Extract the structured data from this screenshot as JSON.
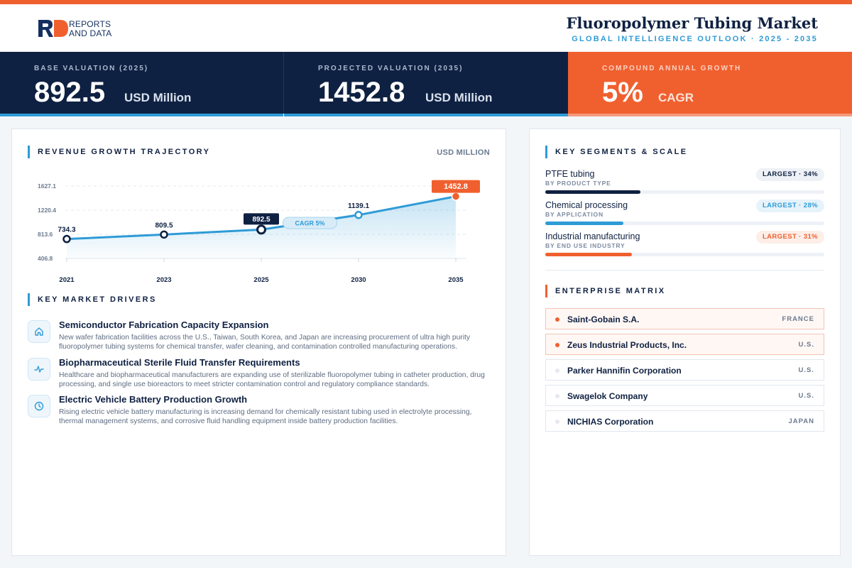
{
  "brand": {
    "logo_line1": "REPORTS",
    "logo_line2": "AND DATA",
    "logo_mark": "RD"
  },
  "header": {
    "title": "Fluoropolymer Tubing Market",
    "subtitle": "GLOBAL INTELLIGENCE OUTLOOK  ·  2025 - 2035"
  },
  "kpis": [
    {
      "label": "BASE VALUATION (2025)",
      "value": "892.5",
      "unit": "USD Million"
    },
    {
      "label": "PROJECTED VALUATION (2035)",
      "value": "1452.8",
      "unit": "USD Million"
    },
    {
      "label": "COMPOUND ANNUAL GROWTH",
      "value": "5%",
      "unit": "CAGR"
    }
  ],
  "revenue": {
    "title": "REVENUE GROWTH TRAJECTORY",
    "unit_label": "USD MILLION",
    "cagr_pill": "CAGR 5%"
  },
  "chart_data": {
    "type": "area",
    "x": [
      "2021",
      "2023",
      "2025",
      "2030",
      "2035"
    ],
    "series": [
      {
        "values": [
          734.3,
          809.5,
          892.5,
          1139.1,
          1452.8
        ]
      }
    ],
    "data_labels": [
      "734.3",
      "809.5",
      "892.5",
      "1139.1",
      "1452.8"
    ],
    "y_ticks": [
      "406.8",
      "813.6",
      "1220.4",
      "1627.1"
    ],
    "ylim": [
      406.8,
      1627.1
    ],
    "grid": true,
    "annotation": "CAGR 5%"
  },
  "drivers": {
    "title": "KEY MARKET DRIVERS",
    "items": [
      {
        "icon": "home-icon",
        "title": "Semiconductor Fabrication Capacity Expansion",
        "desc": "New wafer fabrication facilities across the U.S., Taiwan, South Korea, and Japan are increasing procurement of ultra high purity fluoropolymer tubing systems for chemical transfer, wafer cleaning, and contamination controlled manufacturing operations."
      },
      {
        "icon": "pulse-icon",
        "title": "Biopharmaceutical Sterile Fluid Transfer Requirements",
        "desc": "Healthcare and biopharmaceutical manufacturers are expanding use of sterilizable fluoropolymer tubing in catheter production, drug processing, and single use bioreactors to meet stricter contamination control and regulatory compliance standards."
      },
      {
        "icon": "clock-icon",
        "title": "Electric Vehicle Battery Production Growth",
        "desc": "Rising electric vehicle battery manufacturing is increasing demand for chemically resistant tubing used in electrolyte processing, thermal management systems, and corrosive fluid handling equipment inside battery production facilities."
      }
    ]
  },
  "segments": {
    "title": "KEY SEGMENTS & SCALE",
    "items": [
      {
        "name": "PTFE tubing",
        "category": "BY PRODUCT TYPE",
        "badge": "LARGEST · 34%",
        "share": 0.34,
        "color": "#0f2142",
        "badge_bg": "#eef1f6",
        "badge_fg": "#0f2142"
      },
      {
        "name": "Chemical processing",
        "category": "BY APPLICATION",
        "badge": "LARGEST · 28%",
        "share": 0.28,
        "color": "#2e9bd6",
        "badge_bg": "#e6f3fb",
        "badge_fg": "#2e9bd6"
      },
      {
        "name": "Industrial manufacturing",
        "category": "BY END USE INDUSTRY",
        "badge": "LARGEST · 31%",
        "share": 0.31,
        "color": "#f0602f",
        "badge_bg": "#fdeee8",
        "badge_fg": "#f0602f"
      }
    ]
  },
  "enterprise": {
    "title": "ENTERPRISE MATRIX",
    "items": [
      {
        "name": "Saint-Gobain S.A.",
        "country": "FRANCE",
        "highlight": true
      },
      {
        "name": "Zeus Industrial Products, Inc.",
        "country": "U.S.",
        "highlight": true
      },
      {
        "name": "Parker Hannifin Corporation",
        "country": "U.S.",
        "highlight": false
      },
      {
        "name": "Swagelok Company",
        "country": "U.S.",
        "highlight": false
      },
      {
        "name": "NICHIAS Corporation",
        "country": "JAPAN",
        "highlight": false
      }
    ]
  },
  "colors": {
    "navy": "#0f2142",
    "blue": "#2e9bd6",
    "orange": "#f0602f"
  }
}
